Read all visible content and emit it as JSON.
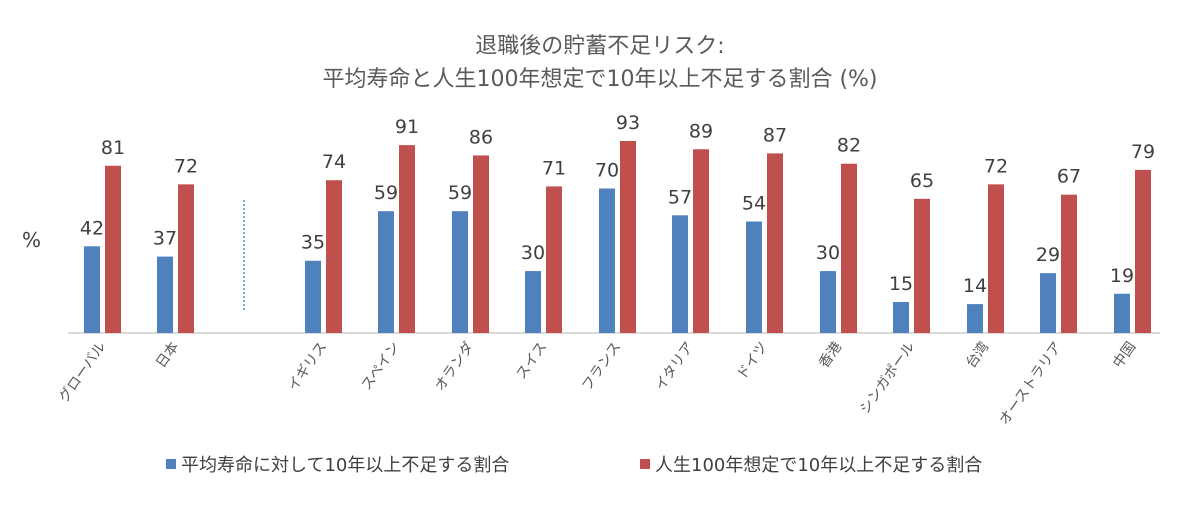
{
  "chart_data": {
    "type": "bar",
    "title": "退職後の貯蓄不足リスク:\n平均寿命と人生100年想定で10年以上不足する割合 (%)",
    "title_lines": [
      "退職後の貯蓄不足リスク:",
      "平均寿命と人生100年想定で10年以上不足する割合 (%)"
    ],
    "ylabel": "%",
    "xlabel": "",
    "ylim": [
      0,
      100
    ],
    "grid": false,
    "legend_position": "bottom",
    "categories": [
      "グローバル",
      "日本",
      "イギリス",
      "スペイン",
      "オランダ",
      "スイス",
      "フランス",
      "イタリア",
      "ドイツ",
      "香港",
      "シンガポール",
      "台湾",
      "オーストラリア",
      "中国"
    ],
    "separator_after_index": 1,
    "series": [
      {
        "name": "平均寿命に対して10年以上不足する割合",
        "color": "#4F81BD",
        "values": [
          42,
          37,
          35,
          59,
          59,
          30,
          70,
          57,
          54,
          30,
          15,
          14,
          29,
          19
        ]
      },
      {
        "name": "人生100年想定で10年以上不足する割合",
        "color": "#C0504D",
        "values": [
          81,
          72,
          74,
          91,
          86,
          71,
          93,
          89,
          87,
          82,
          65,
          72,
          67,
          79
        ]
      }
    ]
  }
}
